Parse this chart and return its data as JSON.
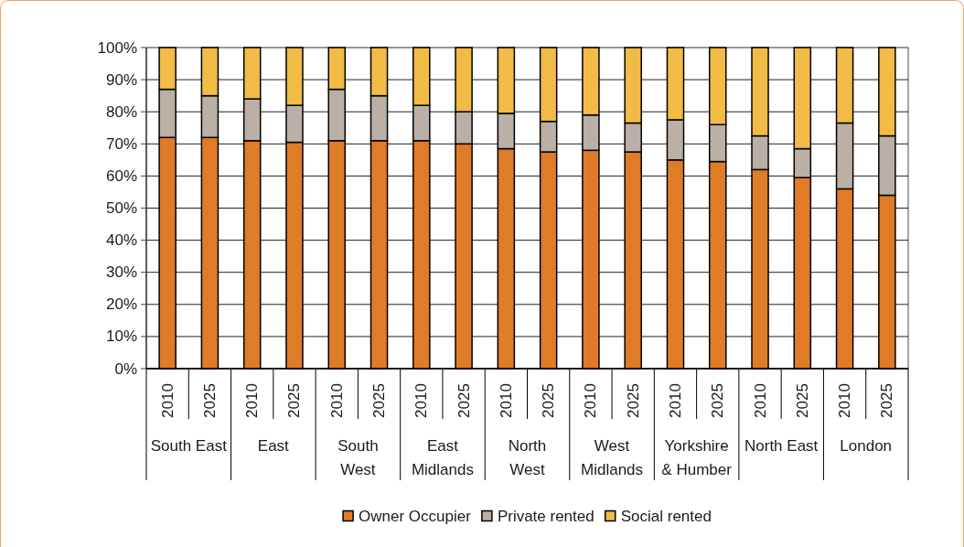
{
  "chart_data": {
    "type": "bar",
    "stacked": true,
    "categories": [
      "2010",
      "2025",
      "2010",
      "2025",
      "2010",
      "2025",
      "2010",
      "2025",
      "2010",
      "2025",
      "2010",
      "2025",
      "2010",
      "2025",
      "2010",
      "2025",
      "2010",
      "2025"
    ],
    "series": [
      {
        "name": "Owner Occupier",
        "color": "#e07b28",
        "values": [
          72,
          72,
          71,
          70.5,
          71,
          71,
          71,
          70,
          68.5,
          67.5,
          68,
          67.5,
          65,
          64.5,
          62,
          59.5,
          56,
          54
        ]
      },
      {
        "name": "Private rented",
        "color": "#bab0a6",
        "values": [
          15,
          13,
          13,
          11.5,
          16,
          14,
          11,
          10,
          11,
          9.5,
          11,
          9,
          12.5,
          11.5,
          10.5,
          9,
          20.5,
          18.5
        ]
      },
      {
        "name": "Social rented",
        "color": "#f1bb46",
        "values": [
          13,
          15,
          16,
          18,
          13,
          15,
          18,
          20,
          20.5,
          23,
          21,
          23.5,
          22.5,
          24,
          27.5,
          31.5,
          23.5,
          27.5
        ]
      }
    ],
    "ylim": [
      0,
      100
    ],
    "yticks": [
      {
        "value": 0,
        "label": "0%"
      },
      {
        "value": 10,
        "label": "10%"
      },
      {
        "value": 20,
        "label": "20%"
      },
      {
        "value": 30,
        "label": "30%"
      },
      {
        "value": 40,
        "label": "40%"
      },
      {
        "value": 50,
        "label": "50%"
      },
      {
        "value": 60,
        "label": "60%"
      },
      {
        "value": 70,
        "label": "70%"
      },
      {
        "value": 80,
        "label": "80%"
      },
      {
        "value": 90,
        "label": "90%"
      },
      {
        "value": 100,
        "label": "100%"
      }
    ],
    "grid": "y",
    "legend": "bottom",
    "annotations": [
      "South East",
      "East",
      "South West",
      "East Midlands",
      "North West",
      "West Midlands",
      "Yorkshire & Humber",
      "North East",
      "London"
    ]
  }
}
